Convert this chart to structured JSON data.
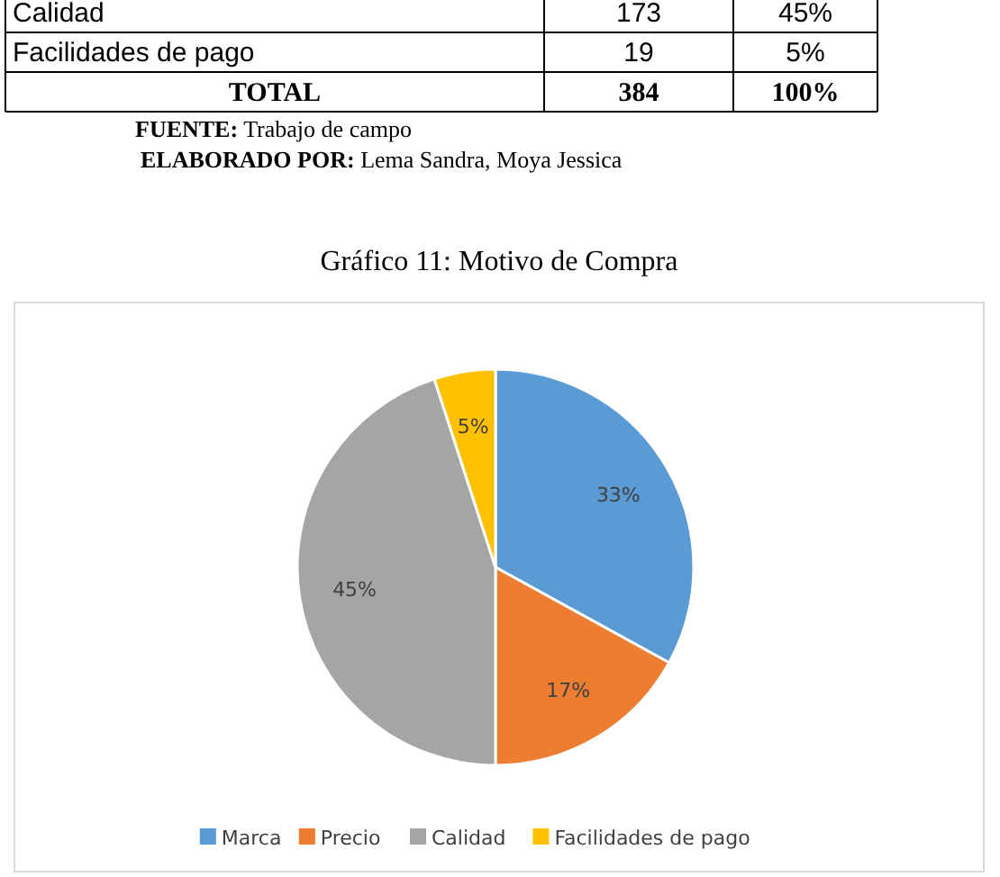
{
  "chart_data": {
    "type": "pie",
    "title": "Gráfico 11: Motivo de Compra",
    "categories": [
      "Marca",
      "Precio",
      "Calidad",
      "Facilidades de pago"
    ],
    "values": [
      33,
      17,
      45,
      5
    ],
    "colors": [
      "#5b9bd5",
      "#ed7d31",
      "#a5a5a5",
      "#ffc000"
    ],
    "value_labels": [
      "33%",
      "17%",
      "45%",
      "5%"
    ],
    "legend": "bottom",
    "annotations": [
      "Calidad",
      "173",
      "45%",
      "Facilidades de pago",
      "19",
      "5%",
      "TOTAL",
      "384",
      "100%",
      "FUENTE: Trabajo de campo",
      "ELABORADO POR: Lema Sandra, Moya  Jessica"
    ]
  }
}
